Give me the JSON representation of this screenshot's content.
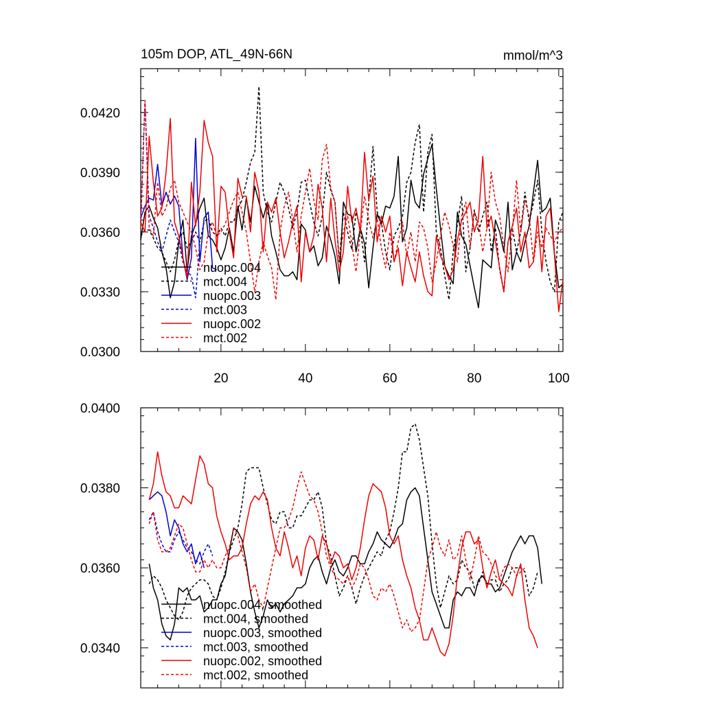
{
  "chart_data": [
    {
      "type": "line",
      "title": "105m DOP, ATL_49N-66N",
      "units": "mmol/m^3",
      "xlim": [
        1,
        101
      ],
      "ylim": [
        0.03,
        0.0442
      ],
      "xticks": [
        "20",
        "40",
        "60",
        "80",
        "100"
      ],
      "yticks": [
        "0.0300",
        "0.0330",
        "0.0360",
        "0.0390",
        "0.0420"
      ],
      "legend_position": "bottom-left",
      "series": [
        {
          "name": "nuopc.004",
          "color": "#000000",
          "dash": "solid",
          "x_start": 1,
          "values": [
            0.0356,
            0.037,
            0.0373,
            0.0367,
            0.0362,
            0.035,
            0.0342,
            0.0327,
            0.0335,
            0.0355,
            0.0366,
            0.034,
            0.0358,
            0.0364,
            0.0372,
            0.0377,
            0.0358,
            0.0356,
            0.0352,
            0.0346,
            0.0352,
            0.0362,
            0.035,
            0.0373,
            0.0361,
            0.0377,
            0.0365,
            0.0383,
            0.0375,
            0.0367,
            0.0375,
            0.0358,
            0.035,
            0.0341,
            0.0338,
            0.0338,
            0.034,
            0.0336,
            0.0364,
            0.0361,
            0.035,
            0.0353,
            0.0343,
            0.0347,
            0.0363,
            0.0356,
            0.0348,
            0.0334,
            0.0375,
            0.0369,
            0.0368,
            0.035,
            0.0362,
            0.0354,
            0.0332,
            0.0352,
            0.0369,
            0.0364,
            0.0373,
            0.0372,
            0.0378,
            0.0398,
            0.0355,
            0.0362,
            0.0386,
            0.0375,
            0.0372,
            0.0389,
            0.0397,
            0.0404,
            0.0382,
            0.0362,
            0.0343,
            0.0338,
            0.0334,
            0.037,
            0.0358,
            0.0354,
            0.0343,
            0.0332,
            0.0322,
            0.0346,
            0.0344,
            0.0342,
            0.0366,
            0.036,
            0.035,
            0.0375,
            0.0341,
            0.035,
            0.0345,
            0.0355,
            0.0363,
            0.038,
            0.0396,
            0.037,
            0.0372,
            0.0377,
            0.0349,
            0.0332,
            0.0334
          ]
        },
        {
          "name": "mct.004",
          "color": "#000000",
          "dash": "dashed",
          "x_start": 1,
          "values": [
            0.0358,
            0.0361,
            0.0361,
            0.0357,
            0.0352,
            0.035,
            0.0345,
            0.034,
            0.0346,
            0.0356,
            0.036,
            0.0352,
            0.0355,
            0.036,
            0.0355,
            0.0365,
            0.0367,
            0.036,
            0.0358,
            0.0362,
            0.0358,
            0.0365,
            0.0365,
            0.0372,
            0.0376,
            0.0385,
            0.0395,
            0.04,
            0.0433,
            0.038,
            0.037,
            0.0365,
            0.0375,
            0.0385,
            0.038,
            0.0372,
            0.0362,
            0.037,
            0.0385,
            0.0386,
            0.0375,
            0.0365,
            0.0358,
            0.0368,
            0.039,
            0.0381,
            0.0375,
            0.0345,
            0.037,
            0.036,
            0.0351,
            0.037,
            0.0362,
            0.0345,
            0.0375,
            0.0403,
            0.037,
            0.0365,
            0.035,
            0.0341,
            0.0358,
            0.0362,
            0.0368,
            0.0385,
            0.039,
            0.0405,
            0.0414,
            0.037,
            0.04,
            0.0409,
            0.036,
            0.0352,
            0.0338,
            0.0326,
            0.035,
            0.0364,
            0.0378,
            0.034,
            0.0352,
            0.0371,
            0.036,
            0.0368,
            0.0375,
            0.035,
            0.0362,
            0.0341,
            0.033,
            0.0355,
            0.0362,
            0.035,
            0.036,
            0.038,
            0.0365,
            0.0375,
            0.0386,
            0.036,
            0.0345,
            0.0335,
            0.033,
            0.0365,
            0.037
          ]
        },
        {
          "name": "nuopc.003",
          "color": "#0000cc",
          "dash": "solid",
          "x_start": 1,
          "values": [
            0.0367,
            0.0373,
            0.0377,
            0.0376,
            0.0394,
            0.0373,
            0.038,
            0.0374,
            0.0378,
            0.0373,
            0.0347,
            0.0336,
            0.0347,
            0.0407,
            0.0345,
            0.0367,
            0.037,
            0.0342,
            0.0341
          ]
        },
        {
          "name": "mct.003",
          "color": "#0000cc",
          "dash": "dashed",
          "x_start": 1,
          "values": [
            0.0365,
            0.0426,
            0.0368,
            0.0362,
            0.0355,
            0.035,
            0.0358,
            0.0366,
            0.036,
            0.0355,
            0.0345,
            0.034,
            0.0338,
            0.0327,
            0.0355
          ]
        },
        {
          "name": "nuopc.002",
          "color": "#ee0000",
          "dash": "solid",
          "x_start": 1,
          "values": [
            0.0365,
            0.036,
            0.0408,
            0.0385,
            0.0368,
            0.0372,
            0.039,
            0.0417,
            0.0365,
            0.0358,
            0.0347,
            0.0337,
            0.0385,
            0.0363,
            0.038,
            0.0416,
            0.0405,
            0.0398,
            0.035,
            0.0383,
            0.038,
            0.036,
            0.0347,
            0.0387,
            0.0378,
            0.0378,
            0.036,
            0.039,
            0.038,
            0.035,
            0.0375,
            0.037,
            0.0377,
            0.036,
            0.0347,
            0.0355,
            0.0365,
            0.0373,
            0.0335,
            0.036,
            0.035,
            0.0358,
            0.0384,
            0.0372,
            0.0345,
            0.0377,
            0.0356,
            0.034,
            0.035,
            0.0383,
            0.0365,
            0.0372,
            0.036,
            0.04,
            0.0376,
            0.0388,
            0.0355,
            0.0368,
            0.036,
            0.0368,
            0.0345,
            0.0352,
            0.0333,
            0.035,
            0.0342,
            0.0335,
            0.035,
            0.0338,
            0.033,
            0.0328,
            0.0358,
            0.0348,
            0.0343,
            0.0336,
            0.0341,
            0.0356,
            0.0366,
            0.037,
            0.0375,
            0.036,
            0.0367,
            0.0398,
            0.0362,
            0.0368,
            0.0355,
            0.0342,
            0.033,
            0.0355,
            0.0363,
            0.0372,
            0.035,
            0.036,
            0.0342,
            0.0345,
            0.0368,
            0.034,
            0.0368,
            0.0372,
            0.0348,
            0.032,
            0.0336
          ]
        },
        {
          "name": "mct.002",
          "color": "#ee0000",
          "dash": "dashed",
          "x_start": 1,
          "values": [
            0.0363,
            0.0426,
            0.0362,
            0.0358,
            0.0385,
            0.0368,
            0.0372,
            0.0382,
            0.0386,
            0.0375,
            0.037,
            0.0365,
            0.036,
            0.0352,
            0.0341,
            0.0345,
            0.036,
            0.0365,
            0.0358,
            0.036,
            0.0364,
            0.037,
            0.0376,
            0.038,
            0.037,
            0.036,
            0.0345,
            0.033,
            0.0345,
            0.0355,
            0.0348,
            0.0342,
            0.0326,
            0.036,
            0.0373,
            0.038,
            0.0366,
            0.035,
            0.0368,
            0.038,
            0.0392,
            0.0376,
            0.0366,
            0.0396,
            0.0404,
            0.0382,
            0.0375,
            0.0346,
            0.036,
            0.0368,
            0.0354,
            0.034,
            0.036,
            0.0378,
            0.0366,
            0.0357,
            0.0367,
            0.0352,
            0.0342,
            0.036,
            0.0345,
            0.0355,
            0.0365,
            0.0348,
            0.036,
            0.0345,
            0.0365,
            0.0362,
            0.0352,
            0.0335,
            0.0345,
            0.0358,
            0.037,
            0.0363,
            0.0353,
            0.0345,
            0.0368,
            0.0375,
            0.0352,
            0.037,
            0.0365,
            0.035,
            0.0362,
            0.039,
            0.0375,
            0.0368,
            0.0352,
            0.034,
            0.036,
            0.0386,
            0.036,
            0.0376,
            0.0368,
            0.0345,
            0.036,
            0.0352,
            0.0362,
            0.0358,
            0.0355,
            0.036,
            0.0362
          ]
        }
      ]
    },
    {
      "type": "line",
      "title": "",
      "xlim": [
        1,
        101
      ],
      "ylim": [
        0.033,
        0.04
      ],
      "xticks": [
        "",
        "",
        "",
        "",
        ""
      ],
      "yticks": [
        "0.0340",
        "0.0360",
        "0.0380",
        "0.0400"
      ],
      "legend_position": "bottom-left",
      "series": [
        {
          "name": "nuopc.004, smoothed",
          "color": "#000000",
          "dash": "solid",
          "x_start": 3,
          "values": [
            0.0361,
            0.0355,
            0.0352,
            0.0346,
            0.0343,
            0.0342,
            0.0346,
            0.0355,
            0.0354,
            0.0355,
            0.0352,
            0.0352,
            0.0353,
            0.0349,
            0.035,
            0.0352,
            0.0352,
            0.0356,
            0.0358,
            0.0364,
            0.037,
            0.0369,
            0.0367,
            0.0361,
            0.0354,
            0.0349,
            0.0345,
            0.0348,
            0.0352,
            0.035,
            0.0351,
            0.0349,
            0.0351,
            0.0352,
            0.0353,
            0.0355,
            0.0355,
            0.0356,
            0.036,
            0.0362,
            0.0363,
            0.0359,
            0.0356,
            0.036,
            0.0362,
            0.0359,
            0.0358,
            0.036,
            0.0363,
            0.0363,
            0.0361,
            0.0361,
            0.0364,
            0.0366,
            0.0369,
            0.0367,
            0.0366,
            0.0365,
            0.0367,
            0.037,
            0.0371,
            0.0377,
            0.0379,
            0.038,
            0.0378,
            0.037,
            0.0362,
            0.0354,
            0.0351,
            0.0348,
            0.0345,
            0.0345,
            0.0352,
            0.0354,
            0.0353,
            0.0355,
            0.0355,
            0.0353,
            0.0357,
            0.0358,
            0.0356,
            0.0356,
            0.0354,
            0.0355,
            0.0358,
            0.0361,
            0.0364,
            0.0366,
            0.0368,
            0.0366,
            0.0368,
            0.0368,
            0.0365,
            0.0356
          ]
        },
        {
          "name": "mct.004, smoothed",
          "color": "#000000",
          "dash": "dashed",
          "x_start": 3,
          "values": [
            0.0356,
            0.0358,
            0.0357,
            0.0355,
            0.0352,
            0.035,
            0.0348,
            0.0347,
            0.0349,
            0.0353,
            0.0355,
            0.0356,
            0.0357,
            0.0357,
            0.0356,
            0.0353,
            0.0352,
            0.0355,
            0.0359,
            0.0364,
            0.0367,
            0.037,
            0.0376,
            0.0384,
            0.0385,
            0.0385,
            0.0385,
            0.038,
            0.0376,
            0.0372,
            0.0371,
            0.0374,
            0.0374,
            0.037,
            0.037,
            0.0373,
            0.0373,
            0.0375,
            0.0377,
            0.0377,
            0.0379,
            0.0375,
            0.0366,
            0.0363,
            0.0358,
            0.0353,
            0.0355,
            0.0358,
            0.0355,
            0.0351,
            0.0355,
            0.0358,
            0.036,
            0.0362,
            0.0364,
            0.0363,
            0.0367,
            0.0369,
            0.0374,
            0.038,
            0.0389,
            0.0389,
            0.0395,
            0.0396,
            0.0392,
            0.0385,
            0.0378,
            0.0366,
            0.0356,
            0.035,
            0.0354,
            0.0358,
            0.0356,
            0.0357,
            0.0362,
            0.036,
            0.0359,
            0.0355,
            0.0356,
            0.0359,
            0.0356,
            0.0357,
            0.0357,
            0.0354,
            0.0356,
            0.0357,
            0.036,
            0.036,
            0.036,
            0.0359,
            0.0353,
            0.0355,
            0.0359
          ]
        },
        {
          "name": "nuopc.003, smoothed",
          "color": "#0000cc",
          "dash": "solid",
          "x_start": 3,
          "values": [
            0.0377,
            0.0378,
            0.0379,
            0.0378,
            0.0374,
            0.0368,
            0.0372,
            0.037,
            0.0366,
            0.0364,
            0.0366,
            0.0361,
            0.0364,
            0.036
          ]
        },
        {
          "name": "mct.003, smoothed",
          "color": "#0000cc",
          "dash": "dashed",
          "x_start": 3,
          "values": [
            0.0372,
            0.0374,
            0.0369,
            0.0366,
            0.0364,
            0.0364,
            0.0367,
            0.0369,
            0.0367,
            0.0365,
            0.0364,
            0.0362,
            0.0361,
            0.0364,
            0.0366,
            0.0363
          ]
        },
        {
          "name": "nuopc.002, smoothed",
          "color": "#ee0000",
          "dash": "solid",
          "x_start": 3,
          "values": [
            0.0377,
            0.0381,
            0.0389,
            0.0383,
            0.0379,
            0.0378,
            0.0375,
            0.0375,
            0.0378,
            0.0377,
            0.0376,
            0.0382,
            0.0388,
            0.0386,
            0.0381,
            0.038,
            0.0373,
            0.0369,
            0.0366,
            0.0362,
            0.0363,
            0.0363,
            0.0365,
            0.0371,
            0.0376,
            0.0378,
            0.0377,
            0.0379,
            0.0377,
            0.037,
            0.0365,
            0.0363,
            0.0369,
            0.0365,
            0.036,
            0.0363,
            0.0358,
            0.0365,
            0.0368,
            0.0367,
            0.0362,
            0.0368,
            0.0366,
            0.0361,
            0.0364,
            0.0363,
            0.036,
            0.0361,
            0.0357,
            0.036,
            0.0365,
            0.0372,
            0.0378,
            0.0381,
            0.038,
            0.0379,
            0.0375,
            0.0368,
            0.0366,
            0.0368,
            0.0362,
            0.0358,
            0.0355,
            0.035,
            0.0347,
            0.0342,
            0.0342,
            0.0345,
            0.0342,
            0.0339,
            0.0338,
            0.0341,
            0.0348,
            0.0358,
            0.0365,
            0.0369,
            0.0369,
            0.0366,
            0.0367,
            0.036,
            0.0355,
            0.0359,
            0.0362,
            0.0357,
            0.0356,
            0.0355,
            0.0353,
            0.0358,
            0.0361,
            0.0352,
            0.0345,
            0.0343,
            0.034
          ]
        },
        {
          "name": "mct.002, smoothed",
          "color": "#ee0000",
          "dash": "dashed",
          "x_start": 3,
          "values": [
            0.0371,
            0.0374,
            0.0367,
            0.0364,
            0.0364,
            0.0365,
            0.0368,
            0.0371,
            0.037,
            0.0366,
            0.0362,
            0.0359,
            0.0359,
            0.0362,
            0.036,
            0.0362,
            0.036,
            0.036,
            0.0363,
            0.0365,
            0.037,
            0.0368,
            0.0364,
            0.036,
            0.0354,
            0.0356,
            0.0352,
            0.035,
            0.0355,
            0.036,
            0.0365,
            0.037,
            0.037,
            0.0372,
            0.0375,
            0.038,
            0.0384,
            0.0381,
            0.0378,
            0.0377,
            0.0374,
            0.0369,
            0.0363,
            0.036,
            0.0358,
            0.0357,
            0.0356,
            0.0358,
            0.0355,
            0.0357,
            0.0361,
            0.036,
            0.0357,
            0.0353,
            0.0352,
            0.0355,
            0.0354,
            0.0356,
            0.0353,
            0.0349,
            0.0345,
            0.0347,
            0.0344,
            0.0345,
            0.0347,
            0.0354,
            0.0362,
            0.0365,
            0.0369,
            0.0365,
            0.0363,
            0.0367,
            0.0362,
            0.0363,
            0.0368,
            0.0362,
            0.0357,
            0.0362,
            0.0368,
            0.0364,
            0.0363,
            0.0361,
            0.0358,
            0.0357,
            0.036,
            0.0361,
            0.036,
            0.0358,
            0.0359,
            0.036
          ]
        }
      ]
    }
  ]
}
